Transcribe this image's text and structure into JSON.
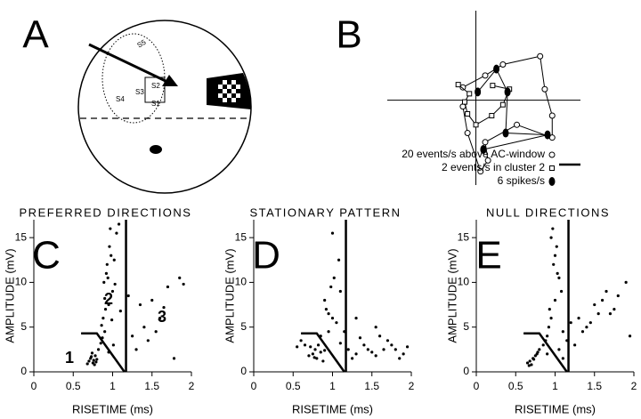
{
  "panel_a": {
    "label": "A",
    "stimuli": [
      "S5",
      "S2",
      "S3",
      "S4",
      "S1"
    ]
  },
  "chart_data": [
    {
      "type": "line",
      "panel": "B",
      "color": "#000",
      "xlim": [
        -1,
        1.2
      ],
      "ylim": [
        -0.9,
        0.95
      ],
      "series": [
        {
          "name": "20 events/s above AC-window",
          "marker": "circle",
          "x": [
            -0.14,
            0.1,
            0.29,
            0.69,
            0.74,
            0.82,
            0.82,
            0.44,
            0.1,
            0.13,
            0.05,
            -0.09,
            -0.14
          ],
          "values": [
            0.14,
            0.27,
            0.39,
            0.48,
            0.12,
            -0.17,
            -0.41,
            -0.27,
            -0.46,
            -0.66,
            -0.78,
            -0.36,
            -0.07
          ]
        },
        {
          "name": "2 events/s in cluster 2",
          "marker": "square",
          "x": [
            -0.19,
            -0.07,
            -0.12,
            -0.09,
            0,
            0.17,
            0.29,
            0.36,
            0.18
          ],
          "values": [
            0.17,
            0.07,
            -0.02,
            -0.15,
            -0.27,
            -0.17,
            -0.05,
            0.12,
            0.16
          ]
        },
        {
          "name": "6 spikes/s",
          "marker": "ellipse",
          "x": [
            0.02,
            0.22,
            0.34,
            0.32,
            0.77,
            0.08
          ],
          "values": [
            0.09,
            0.34,
            0.09,
            -0.36,
            -0.38,
            -0.54
          ]
        }
      ]
    },
    {
      "type": "scatter",
      "panel": "C",
      "title": "PREFERRED DIRECTIONS",
      "color": "#000",
      "x_label": "RISETIME (ms)",
      "y_label": "AMPLITUDE (mV)",
      "xlim": [
        0,
        2
      ],
      "ylim": [
        0,
        17
      ],
      "xticks": [
        0,
        0.5,
        1,
        1.5,
        2
      ],
      "yticks": [
        0,
        5,
        10,
        15
      ],
      "annotations": [
        "1",
        "2",
        "3"
      ],
      "x": [
        0.7,
        0.72,
        0.75,
        0.78,
        0.8,
        0.74,
        0.68,
        0.76,
        0.82,
        0.79,
        0.73,
        0.77,
        0.85,
        0.9,
        0.88,
        0.95,
        1.0,
        0.92,
        0.86,
        0.98,
        1.05,
        0.9,
        0.94,
        1.02,
        0.87,
        0.96,
        1.08,
        0.91,
        0.99,
        1.03,
        0.93,
        0.89,
        1.1,
        0.97,
        1.01,
        0.95,
        1.25,
        1.35,
        1.4,
        1.5,
        1.6,
        1.7,
        1.85,
        1.9,
        1.3,
        1.45,
        1.55,
        1.2,
        1.65,
        1.78
      ],
      "values": [
        1.2,
        1.5,
        1.0,
        1.8,
        1.4,
        2.1,
        0.9,
        1.3,
        2.5,
        1.1,
        1.7,
        0.8,
        3.2,
        4.5,
        6.0,
        7.5,
        9.0,
        11.0,
        5.2,
        13.0,
        15.5,
        8.2,
        10.5,
        12.5,
        3.8,
        14.0,
        16.5,
        7.0,
        5.8,
        9.8,
        12.0,
        10.0,
        6.8,
        16.0,
        3.0,
        2.2,
        4.0,
        7.5,
        5.0,
        8.0,
        6.0,
        9.5,
        10.5,
        9.8,
        2.5,
        3.5,
        4.5,
        8.5,
        7.2,
        1.5
      ],
      "lines": [
        {
          "x": [
            0.6,
            0.8,
            1.15
          ],
          "values": [
            4.3,
            4.3,
            0
          ]
        },
        {
          "x": [
            1.17,
            1.17
          ],
          "values": [
            0,
            17
          ]
        }
      ]
    },
    {
      "type": "scatter",
      "panel": "D",
      "title": "STATIONARY PATTERN",
      "color": "#000",
      "x_label": "RISETIME (ms)",
      "y_label": "AMPLITUDE (mV)",
      "xlim": [
        0,
        2
      ],
      "ylim": [
        0,
        17
      ],
      "xticks": [
        0,
        0.5,
        1,
        1.5,
        2
      ],
      "yticks": [
        0,
        5,
        10,
        15
      ],
      "x": [
        0.75,
        0.8,
        0.78,
        0.85,
        0.7,
        0.82,
        0.88,
        0.72,
        0.9,
        0.77,
        0.6,
        0.65,
        0.95,
        1.0,
        1.05,
        1.1,
        1.2,
        1.3,
        1.4,
        1.5,
        1.6,
        1.7,
        1.8,
        1.9,
        1.95,
        1.25,
        1.35,
        1.45,
        1.55,
        1.15,
        0.92,
        0.98,
        1.02,
        1.08,
        0.9,
        0.95,
        1.0,
        1.1,
        1.3,
        1.55,
        1.75,
        0.85,
        1.65,
        1.85,
        0.55
      ],
      "values": [
        2.0,
        1.5,
        2.5,
        2.2,
        1.8,
        3.0,
        1.2,
        2.8,
        2.4,
        1.6,
        3.5,
        3.0,
        4.5,
        6.0,
        5.5,
        3.2,
        2.5,
        2.0,
        3.0,
        2.2,
        4.0,
        3.5,
        2.5,
        2.0,
        2.8,
        1.5,
        3.8,
        2.5,
        1.8,
        4.5,
        7.0,
        9.5,
        10.5,
        12.5,
        8.0,
        6.5,
        15.5,
        9.0,
        6.0,
        5.0,
        3.0,
        4.0,
        2.5,
        1.5,
        2.8
      ],
      "lines": [
        {
          "x": [
            0.6,
            0.8,
            1.15
          ],
          "values": [
            4.3,
            4.3,
            0
          ]
        },
        {
          "x": [
            1.17,
            1.17
          ],
          "values": [
            0,
            17
          ]
        }
      ]
    },
    {
      "type": "scatter",
      "panel": "E",
      "title": "NULL DIRECTIONS",
      "color": "#000",
      "x_label": "RISETIME (ms)",
      "y_label": "AMPLITUDE (mV)",
      "xlim": [
        0,
        2
      ],
      "ylim": [
        0,
        17
      ],
      "xticks": [
        0,
        0.5,
        1,
        1.5,
        2
      ],
      "yticks": [
        0,
        5,
        10,
        15
      ],
      "x": [
        0.68,
        0.72,
        0.7,
        0.75,
        0.65,
        0.78,
        0.8,
        0.73,
        0.67,
        0.77,
        0.85,
        0.9,
        0.95,
        1.0,
        1.05,
        0.92,
        0.98,
        1.02,
        0.88,
        1.08,
        0.97,
        1.03,
        0.93,
        1.1,
        1.15,
        1.2,
        1.3,
        1.4,
        1.5,
        1.6,
        1.7,
        1.8,
        1.9,
        1.95,
        1.25,
        1.35,
        1.45,
        1.55,
        1.65,
        1.75,
        0.95,
        1.0,
        1.05,
        0.9,
        1.1
      ],
      "values": [
        1.2,
        1.5,
        0.8,
        1.8,
        1.0,
        2.2,
        2.5,
        1.4,
        0.7,
        2.0,
        3.0,
        4.0,
        6.0,
        8.0,
        10.5,
        5.0,
        12.0,
        14.0,
        3.5,
        9.0,
        16.0,
        11.0,
        7.0,
        4.5,
        3.5,
        5.5,
        6.0,
        5.0,
        7.5,
        8.0,
        6.5,
        8.5,
        10.0,
        4.0,
        3.0,
        4.5,
        5.5,
        6.5,
        9.0,
        7.0,
        15.0,
        13.0,
        2.5,
        2.0,
        1.5
      ],
      "lines": [
        {
          "x": [
            0.6,
            0.8,
            1.15
          ],
          "values": [
            4.3,
            4.3,
            0
          ]
        },
        {
          "x": [
            1.17,
            1.17
          ],
          "values": [
            0,
            17
          ]
        }
      ]
    }
  ]
}
